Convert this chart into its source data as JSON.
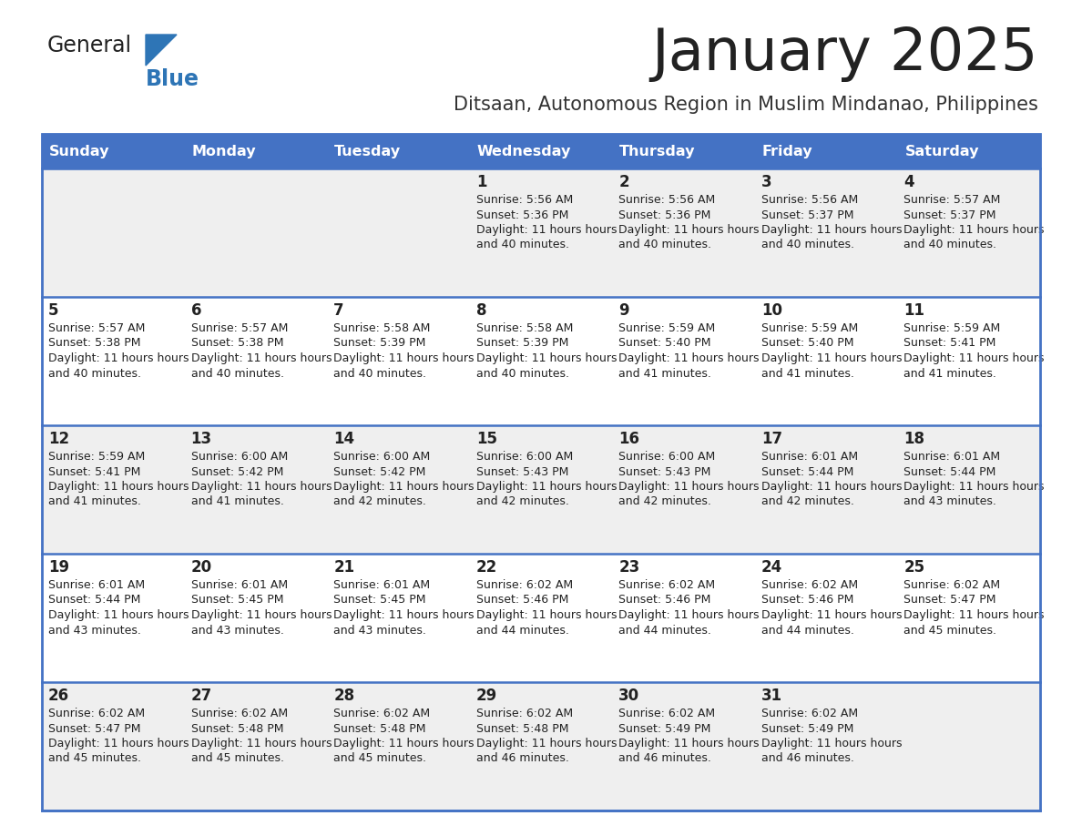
{
  "title": "January 2025",
  "subtitle": "Ditsaan, Autonomous Region in Muslim Mindanao, Philippines",
  "days_of_week": [
    "Sunday",
    "Monday",
    "Tuesday",
    "Wednesday",
    "Thursday",
    "Friday",
    "Saturday"
  ],
  "header_bg_color": "#4472C4",
  "header_text_color": "#FFFFFF",
  "cell_bg_color_even": "#EFEFEF",
  "cell_bg_color_odd": "#FFFFFF",
  "border_color": "#4472C4",
  "text_color": "#222222",
  "title_color": "#222222",
  "subtitle_color": "#333333",
  "logo_general_color": "#222222",
  "logo_blue_color": "#2E75B6",
  "calendar_data": [
    [
      {
        "day": "",
        "sunrise": "",
        "sunset": "",
        "daylight": ""
      },
      {
        "day": "",
        "sunrise": "",
        "sunset": "",
        "daylight": ""
      },
      {
        "day": "",
        "sunrise": "",
        "sunset": "",
        "daylight": ""
      },
      {
        "day": "1",
        "sunrise": "5:56 AM",
        "sunset": "5:36 PM",
        "daylight": "11 hours and 40 minutes."
      },
      {
        "day": "2",
        "sunrise": "5:56 AM",
        "sunset": "5:36 PM",
        "daylight": "11 hours and 40 minutes."
      },
      {
        "day": "3",
        "sunrise": "5:56 AM",
        "sunset": "5:37 PM",
        "daylight": "11 hours and 40 minutes."
      },
      {
        "day": "4",
        "sunrise": "5:57 AM",
        "sunset": "5:37 PM",
        "daylight": "11 hours and 40 minutes."
      }
    ],
    [
      {
        "day": "5",
        "sunrise": "5:57 AM",
        "sunset": "5:38 PM",
        "daylight": "11 hours and 40 minutes."
      },
      {
        "day": "6",
        "sunrise": "5:57 AM",
        "sunset": "5:38 PM",
        "daylight": "11 hours and 40 minutes."
      },
      {
        "day": "7",
        "sunrise": "5:58 AM",
        "sunset": "5:39 PM",
        "daylight": "11 hours and 40 minutes."
      },
      {
        "day": "8",
        "sunrise": "5:58 AM",
        "sunset": "5:39 PM",
        "daylight": "11 hours and 40 minutes."
      },
      {
        "day": "9",
        "sunrise": "5:59 AM",
        "sunset": "5:40 PM",
        "daylight": "11 hours and 41 minutes."
      },
      {
        "day": "10",
        "sunrise": "5:59 AM",
        "sunset": "5:40 PM",
        "daylight": "11 hours and 41 minutes."
      },
      {
        "day": "11",
        "sunrise": "5:59 AM",
        "sunset": "5:41 PM",
        "daylight": "11 hours and 41 minutes."
      }
    ],
    [
      {
        "day": "12",
        "sunrise": "5:59 AM",
        "sunset": "5:41 PM",
        "daylight": "11 hours and 41 minutes."
      },
      {
        "day": "13",
        "sunrise": "6:00 AM",
        "sunset": "5:42 PM",
        "daylight": "11 hours and 41 minutes."
      },
      {
        "day": "14",
        "sunrise": "6:00 AM",
        "sunset": "5:42 PM",
        "daylight": "11 hours and 42 minutes."
      },
      {
        "day": "15",
        "sunrise": "6:00 AM",
        "sunset": "5:43 PM",
        "daylight": "11 hours and 42 minutes."
      },
      {
        "day": "16",
        "sunrise": "6:00 AM",
        "sunset": "5:43 PM",
        "daylight": "11 hours and 42 minutes."
      },
      {
        "day": "17",
        "sunrise": "6:01 AM",
        "sunset": "5:44 PM",
        "daylight": "11 hours and 42 minutes."
      },
      {
        "day": "18",
        "sunrise": "6:01 AM",
        "sunset": "5:44 PM",
        "daylight": "11 hours and 43 minutes."
      }
    ],
    [
      {
        "day": "19",
        "sunrise": "6:01 AM",
        "sunset": "5:44 PM",
        "daylight": "11 hours and 43 minutes."
      },
      {
        "day": "20",
        "sunrise": "6:01 AM",
        "sunset": "5:45 PM",
        "daylight": "11 hours and 43 minutes."
      },
      {
        "day": "21",
        "sunrise": "6:01 AM",
        "sunset": "5:45 PM",
        "daylight": "11 hours and 43 minutes."
      },
      {
        "day": "22",
        "sunrise": "6:02 AM",
        "sunset": "5:46 PM",
        "daylight": "11 hours and 44 minutes."
      },
      {
        "day": "23",
        "sunrise": "6:02 AM",
        "sunset": "5:46 PM",
        "daylight": "11 hours and 44 minutes."
      },
      {
        "day": "24",
        "sunrise": "6:02 AM",
        "sunset": "5:46 PM",
        "daylight": "11 hours and 44 minutes."
      },
      {
        "day": "25",
        "sunrise": "6:02 AM",
        "sunset": "5:47 PM",
        "daylight": "11 hours and 45 minutes."
      }
    ],
    [
      {
        "day": "26",
        "sunrise": "6:02 AM",
        "sunset": "5:47 PM",
        "daylight": "11 hours and 45 minutes."
      },
      {
        "day": "27",
        "sunrise": "6:02 AM",
        "sunset": "5:48 PM",
        "daylight": "11 hours and 45 minutes."
      },
      {
        "day": "28",
        "sunrise": "6:02 AM",
        "sunset": "5:48 PM",
        "daylight": "11 hours and 45 minutes."
      },
      {
        "day": "29",
        "sunrise": "6:02 AM",
        "sunset": "5:48 PM",
        "daylight": "11 hours and 46 minutes."
      },
      {
        "day": "30",
        "sunrise": "6:02 AM",
        "sunset": "5:49 PM",
        "daylight": "11 hours and 46 minutes."
      },
      {
        "day": "31",
        "sunrise": "6:02 AM",
        "sunset": "5:49 PM",
        "daylight": "11 hours and 46 minutes."
      },
      {
        "day": "",
        "sunrise": "",
        "sunset": "",
        "daylight": ""
      }
    ]
  ]
}
